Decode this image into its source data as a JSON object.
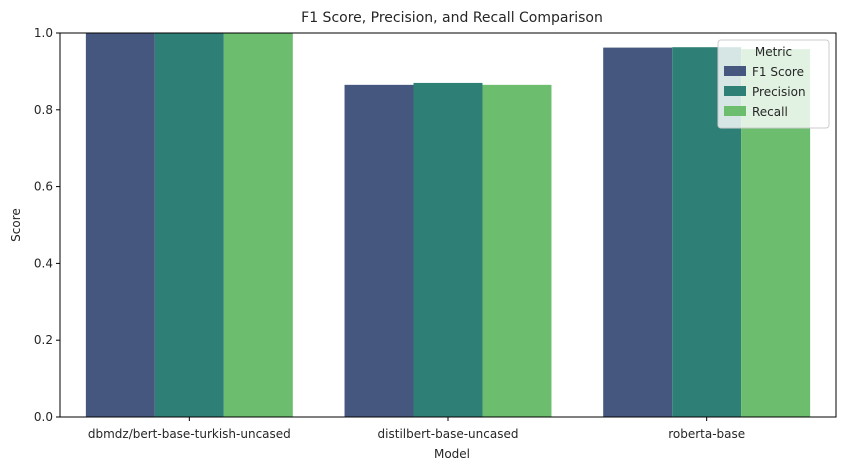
{
  "chart_data": {
    "type": "bar",
    "title": "F1 Score, Precision, and Recall Comparison",
    "xlabel": "Model",
    "ylabel": "Score",
    "ylim": [
      0,
      1.0
    ],
    "yticks": [
      0.0,
      0.2,
      0.4,
      0.6,
      0.8,
      1.0
    ],
    "grid": false,
    "categories": [
      "dbmdz/bert-base-turkish-uncased",
      "distilbert-base-uncased",
      "roberta-base"
    ],
    "series": [
      {
        "name": "F1 Score",
        "color": "#46577f",
        "values": [
          1.0,
          0.865,
          0.962
        ]
      },
      {
        "name": "Precision",
        "color": "#2e8077",
        "values": [
          1.0,
          0.87,
          0.963
        ]
      },
      {
        "name": "Recall",
        "color": "#6cbd6d",
        "values": [
          1.0,
          0.865,
          0.958
        ]
      }
    ],
    "legend": {
      "title": "Metric",
      "position": "top-right"
    }
  }
}
